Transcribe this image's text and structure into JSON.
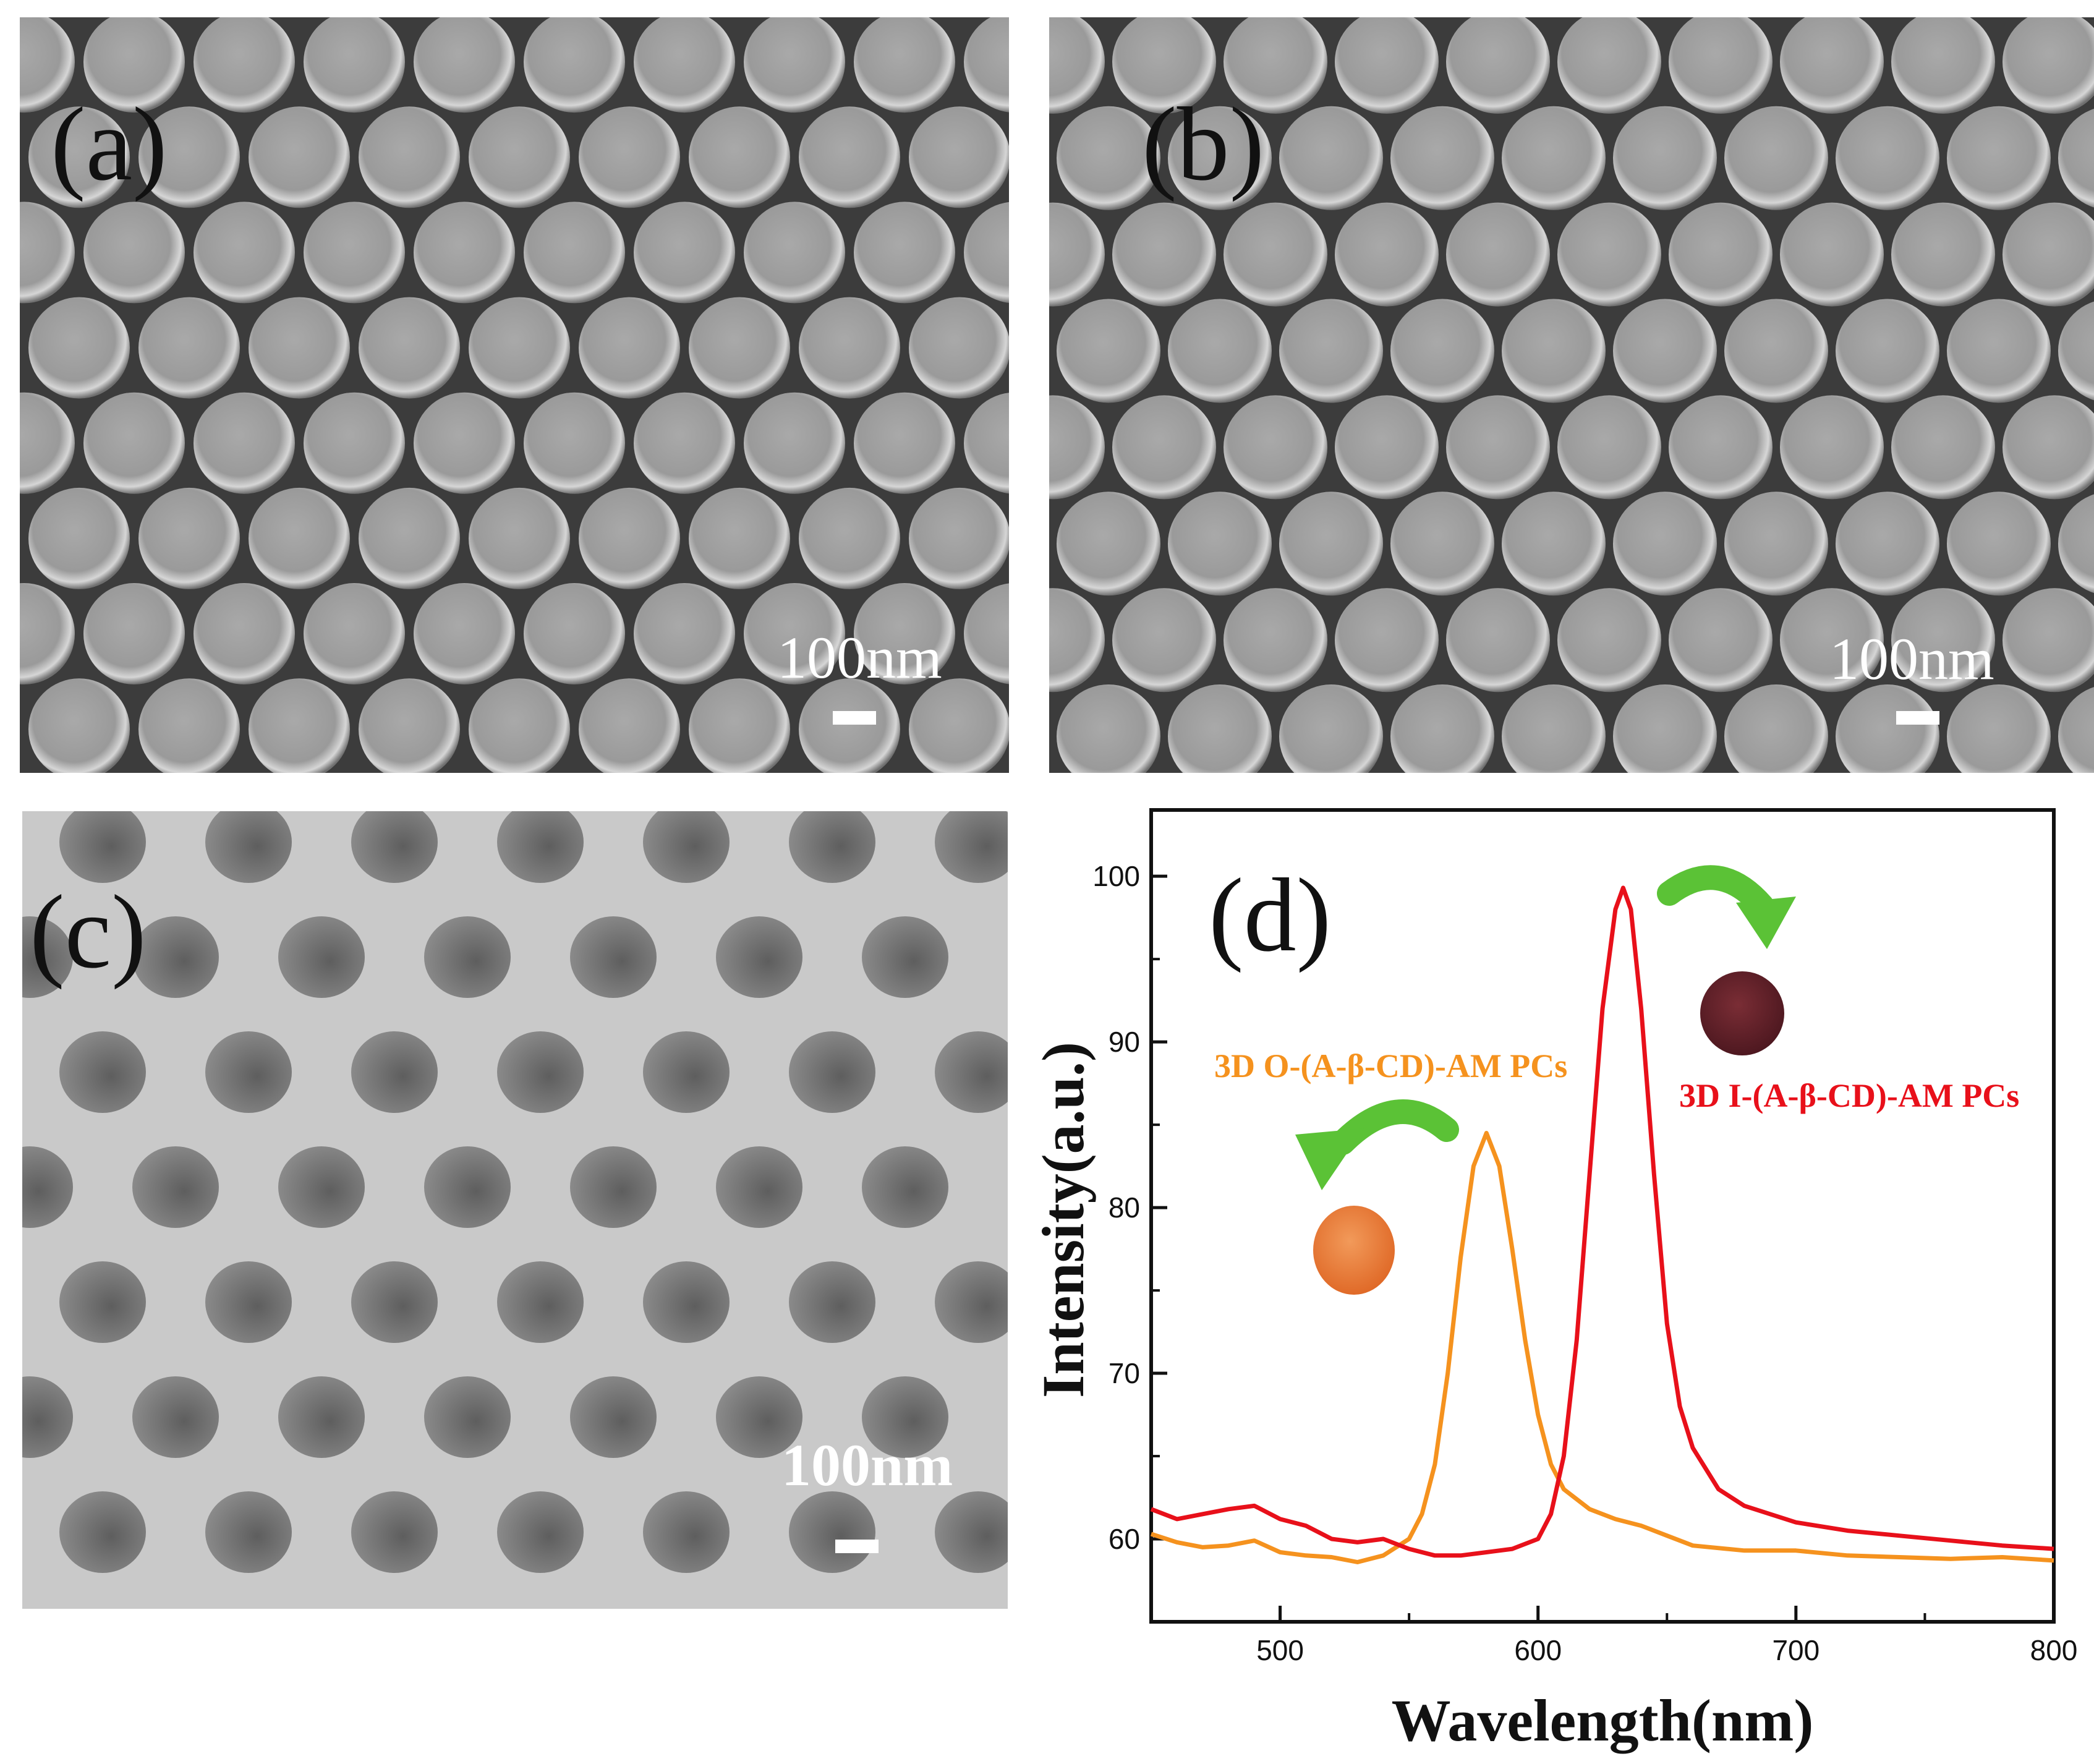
{
  "panels": {
    "a": {
      "label": "(a)",
      "scale_bar": "100nm"
    },
    "b": {
      "label": "(b)",
      "scale_bar": "100nm"
    },
    "c": {
      "label": "(c)",
      "scale_bar": "100nm"
    },
    "d": {
      "label": "(d)"
    }
  },
  "colors": {
    "orange_series": "#f5921e",
    "red_series": "#e8101a",
    "orange_label": "#f5921e",
    "red_label": "#e8101a",
    "arrow_green": "#5bc236"
  },
  "chart_data": {
    "type": "line",
    "xlabel": "Wavelength(nm)",
    "ylabel": "Intensity(a.u.)",
    "xlim": [
      450,
      800
    ],
    "ylim": [
      55,
      104
    ],
    "xticks": [
      500,
      600,
      700,
      800
    ],
    "yticks": [
      60,
      70,
      80,
      90,
      100
    ],
    "grid": false,
    "series": [
      {
        "name": "3D O-(A-β-CD)-AM PCs",
        "color": "#f5921e",
        "x": [
          450,
          460,
          470,
          480,
          490,
          500,
          510,
          520,
          530,
          540,
          550,
          555,
          560,
          565,
          570,
          575,
          580,
          585,
          590,
          595,
          600,
          605,
          610,
          620,
          630,
          640,
          650,
          660,
          680,
          700,
          720,
          740,
          760,
          780,
          800
        ],
        "y": [
          60.3,
          59.8,
          59.5,
          59.6,
          59.9,
          59.2,
          59.0,
          58.9,
          58.6,
          59.0,
          60.0,
          61.5,
          64.5,
          70.0,
          77.0,
          82.5,
          84.5,
          82.5,
          77.5,
          72.0,
          67.5,
          64.5,
          63.0,
          61.8,
          61.2,
          60.8,
          60.2,
          59.6,
          59.3,
          59.3,
          59.0,
          58.9,
          58.8,
          58.9,
          58.7
        ]
      },
      {
        "name": "3D I-(A-β-CD)-AM PCs",
        "color": "#e8101a",
        "x": [
          450,
          460,
          470,
          480,
          490,
          500,
          510,
          520,
          530,
          540,
          550,
          560,
          570,
          580,
          590,
          600,
          605,
          610,
          615,
          620,
          625,
          630,
          633,
          636,
          640,
          645,
          650,
          655,
          660,
          670,
          680,
          690,
          700,
          720,
          740,
          760,
          780,
          800
        ],
        "y": [
          61.8,
          61.2,
          61.5,
          61.8,
          62.0,
          61.2,
          60.8,
          60.0,
          59.8,
          60.0,
          59.4,
          59.0,
          59.0,
          59.2,
          59.4,
          60.0,
          61.5,
          65.0,
          72.0,
          82.0,
          92.0,
          98.0,
          99.3,
          98.0,
          92.0,
          82.0,
          73.0,
          68.0,
          65.5,
          63.0,
          62.0,
          61.5,
          61.0,
          60.5,
          60.2,
          59.9,
          59.6,
          59.4
        ]
      }
    ],
    "annotations": [
      {
        "text": "3D O-(A-β-CD)-AM PCs"
      },
      {
        "text": "3D I-(A-β-CD)-AM PCs"
      }
    ]
  }
}
